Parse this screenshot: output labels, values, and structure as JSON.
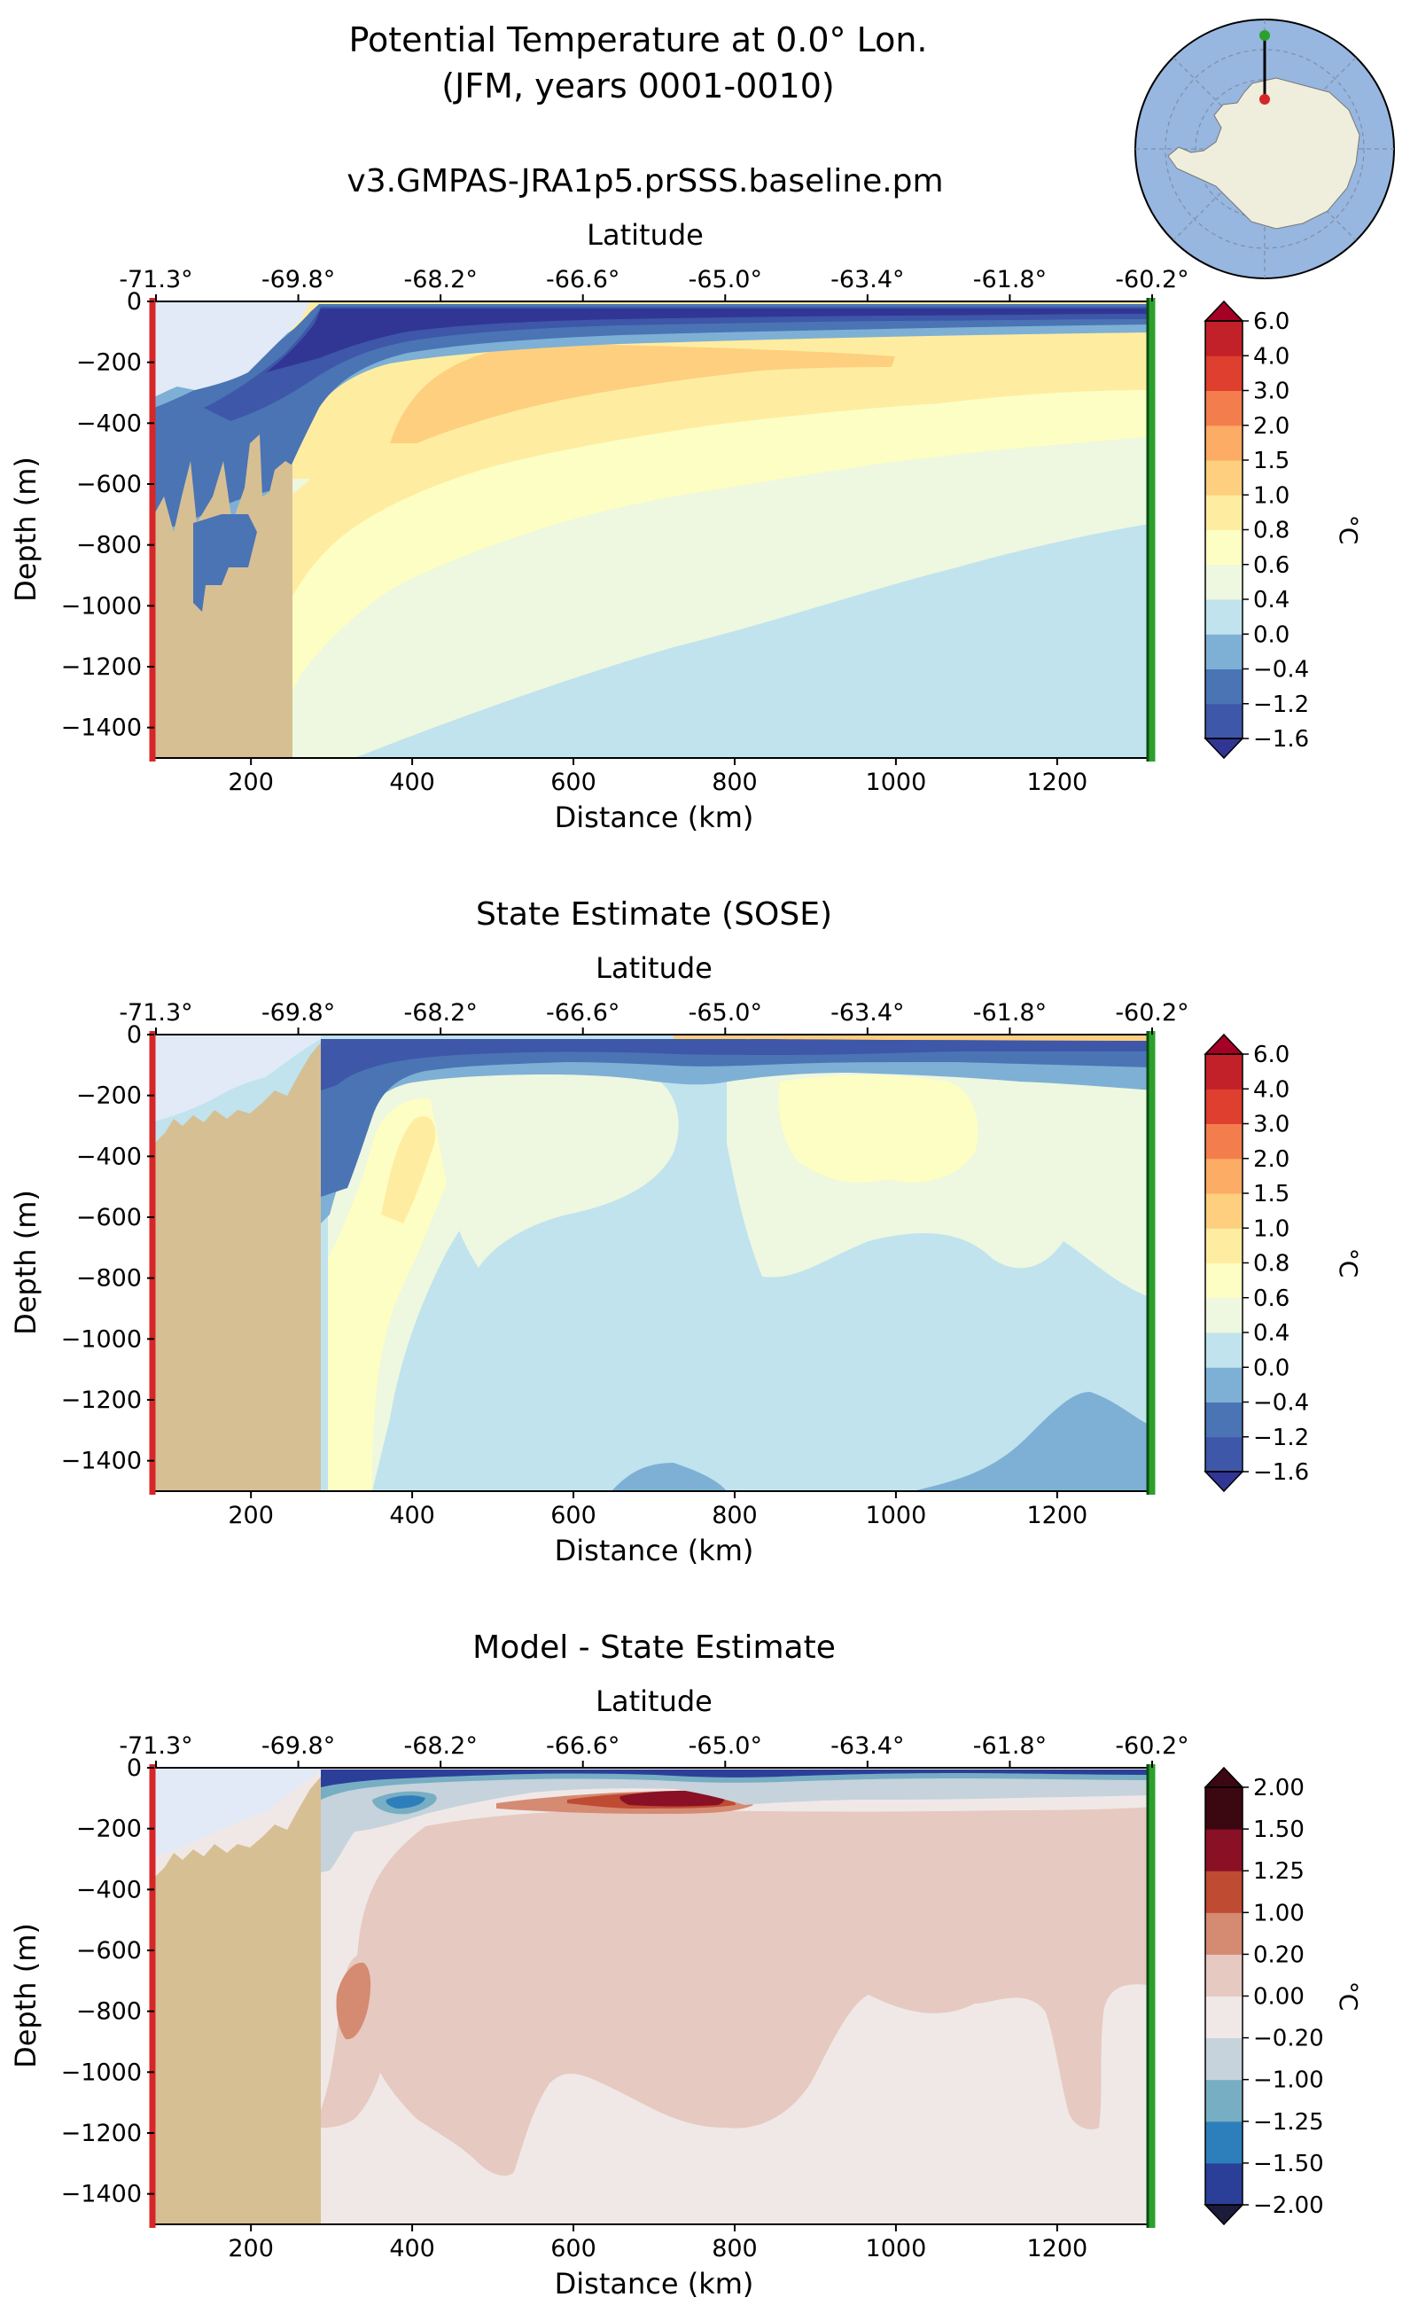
{
  "figure": {
    "suptitle_line1": "Potential Temperature at 0.0° Lon.",
    "suptitle_line2": "(JFM, years 0001-0010)",
    "inset_map": "antarctica-polar-map"
  },
  "chart_data": [
    {
      "type": "heatmap",
      "title": "v3.GMPAS-JRA1p5.prSSS.baseline.pm",
      "xlabel": "Distance (km)",
      "ylabel": "Depth (m)",
      "top_xlabel": "Latitude",
      "xlim": [
        80,
        1320
      ],
      "ylim": [
        -1500,
        0
      ],
      "x_ticks": [
        200,
        400,
        600,
        800,
        1000,
        1200
      ],
      "y_ticks": [
        0,
        -200,
        -400,
        -600,
        -800,
        -1000,
        -1200,
        -1400
      ],
      "latitude_ticks": [
        "-71.3°",
        "-69.8°",
        "-68.2°",
        "-66.6°",
        "-65.0°",
        "-63.4°",
        "-61.8°",
        "-60.2°"
      ],
      "colorbar_label": "°C",
      "colorbar_levels": [
        -1.6,
        -1.2,
        -0.4,
        0.0,
        0.4,
        0.6,
        0.8,
        1.0,
        1.5,
        2.0,
        3.0,
        4.0,
        6.0
      ],
      "colorbar_colors": [
        "#313695",
        "#3e57a8",
        "#4a74b4",
        "#7eb0d5",
        "#c0e3ee",
        "#eef7df",
        "#fdfec4",
        "#feeda0",
        "#fdcf7f",
        "#fcac64",
        "#f47d4e",
        "#de3f2e",
        "#c2212a",
        "#a50026"
      ],
      "colormap": "RdYlBu_r",
      "start_marker_color": "#d62728",
      "end_marker_color": "#2ca02c"
    },
    {
      "type": "heatmap",
      "title": "State Estimate (SOSE)",
      "xlabel": "Distance (km)",
      "ylabel": "Depth (m)",
      "top_xlabel": "Latitude",
      "xlim": [
        80,
        1320
      ],
      "ylim": [
        -1500,
        0
      ],
      "x_ticks": [
        200,
        400,
        600,
        800,
        1000,
        1200
      ],
      "y_ticks": [
        0,
        -200,
        -400,
        -600,
        -800,
        -1000,
        -1200,
        -1400
      ],
      "latitude_ticks": [
        "-71.3°",
        "-69.8°",
        "-68.2°",
        "-66.6°",
        "-65.0°",
        "-63.4°",
        "-61.8°",
        "-60.2°"
      ],
      "colorbar_label": "°C",
      "colorbar_levels": [
        -1.6,
        -1.2,
        -0.4,
        0.0,
        0.4,
        0.6,
        0.8,
        1.0,
        1.5,
        2.0,
        3.0,
        4.0,
        6.0
      ],
      "colorbar_colors": [
        "#313695",
        "#3e57a8",
        "#4a74b4",
        "#7eb0d5",
        "#c0e3ee",
        "#eef7df",
        "#fdfec4",
        "#feeda0",
        "#fdcf7f",
        "#fcac64",
        "#f47d4e",
        "#de3f2e",
        "#c2212a",
        "#a50026"
      ],
      "colormap": "RdYlBu_r",
      "start_marker_color": "#d62728",
      "end_marker_color": "#2ca02c"
    },
    {
      "type": "heatmap",
      "title": "Model - State Estimate",
      "xlabel": "Distance (km)",
      "ylabel": "Depth (m)",
      "top_xlabel": "Latitude",
      "xlim": [
        80,
        1320
      ],
      "ylim": [
        -1500,
        0
      ],
      "x_ticks": [
        200,
        400,
        600,
        800,
        1000,
        1200
      ],
      "y_ticks": [
        0,
        -200,
        -400,
        -600,
        -800,
        -1000,
        -1200,
        -1400
      ],
      "latitude_ticks": [
        "-71.3°",
        "-69.8°",
        "-68.2°",
        "-66.6°",
        "-65.0°",
        "-63.4°",
        "-61.8°",
        "-60.2°"
      ],
      "colorbar_label": "°C",
      "colorbar_levels": [
        -2.0,
        -1.5,
        -1.25,
        -1.0,
        -0.2,
        0.0,
        0.2,
        1.0,
        1.25,
        1.5,
        2.0
      ],
      "colorbar_colors": [
        "#1b1b3a",
        "#2b3f99",
        "#2d7fbc",
        "#78aec3",
        "#c6d3dc",
        "#f0e8e7",
        "#e6c9c0",
        "#d58a72",
        "#bf4b32",
        "#8a1026",
        "#3b0812"
      ],
      "colormap": "RdBu_r (balance)",
      "start_marker_color": "#d62728",
      "end_marker_color": "#2ca02c"
    }
  ]
}
